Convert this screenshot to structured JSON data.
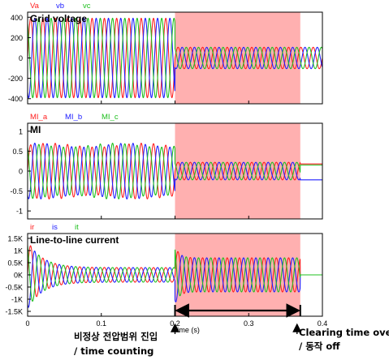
{
  "chart_data": [
    {
      "type": "line",
      "title": "Grid voltage",
      "legend": [
        "Va",
        "vb",
        "vc"
      ],
      "series": [
        {
          "name": "Va",
          "color": "#ff2020"
        },
        {
          "name": "vb",
          "color": "#2020ff"
        },
        {
          "name": "vc",
          "color": "#20c020"
        }
      ],
      "yticks": [
        "400",
        "200",
        "0",
        "-200",
        "-400"
      ],
      "yticks_values": [
        400,
        200,
        0,
        -200,
        -400
      ],
      "ylim": [
        -450,
        450
      ],
      "xlim": [
        0,
        0.4
      ],
      "frequency_hz": 60,
      "amplitude_before": 390,
      "amplitude_after": 105,
      "dc_offset_after": 0,
      "transient_spike_at_0": 0,
      "ripple_before": 0,
      "amplitude_after_clearing": 105
    },
    {
      "type": "line",
      "title": "MI",
      "legend": [
        "MI_a",
        "MI_b",
        "MI_c"
      ],
      "series": [
        {
          "name": "MI_a",
          "color": "#ff2020"
        },
        {
          "name": "MI_b",
          "color": "#2020ff"
        },
        {
          "name": "MI_c",
          "color": "#20c020"
        }
      ],
      "yticks": [
        "1",
        "0.5",
        "0",
        "-0.5",
        "-1"
      ],
      "yticks_values": [
        1,
        0.5,
        0,
        -0.5,
        -1
      ],
      "ylim": [
        -1.2,
        1.2
      ],
      "xlim": [
        0,
        0.4
      ],
      "frequency_hz": 60,
      "amplitude_before": 0.65,
      "amplitude_after": 0.22,
      "dc_offset_after": 0,
      "transient_spike_at_0": 0,
      "ripple_before": 0.05,
      "amplitude_after_clearing": 0.18
    },
    {
      "type": "line",
      "title": "Line-to-line current",
      "legend": [
        "ir",
        "is",
        "it"
      ],
      "series": [
        {
          "name": "ir",
          "color": "#ff2020"
        },
        {
          "name": "is",
          "color": "#2020ff"
        },
        {
          "name": "it",
          "color": "#20c020"
        }
      ],
      "yticks": [
        "1.5K",
        "1K",
        "0.5K",
        "0K",
        "-0.5K",
        "-1K",
        "-1.5K"
      ],
      "yticks_values": [
        1500,
        1000,
        500,
        0,
        -500,
        -1000,
        -1500
      ],
      "ylim": [
        -1700,
        1700
      ],
      "xlim": [
        0,
        0.4
      ],
      "frequency_hz": 60,
      "amplitude_before": 300,
      "amplitude_after": 700,
      "dc_offset_after": 0,
      "transient_spike_at_0": 1100,
      "ripple_before": 0,
      "amplitude_after_clearing": 0
    }
  ],
  "xaxis": {
    "ticks": [
      "0",
      "0.1",
      "0.2",
      "0.3",
      "0.4"
    ],
    "ticks_values": [
      0,
      0.1,
      0.2,
      0.3,
      0.4
    ],
    "label": "Time (s)"
  },
  "highlight": {
    "from": 0.2,
    "to": 0.37,
    "color": "#ffb0b0"
  },
  "annotations": {
    "entry_line1": "비정상 전압범위 진입",
    "entry_line2": "/ time counting",
    "clear_line1": "Clearing time over",
    "clear_line2": "/ 동작 off",
    "entry_time": 0.2,
    "clear_time": 0.37
  }
}
